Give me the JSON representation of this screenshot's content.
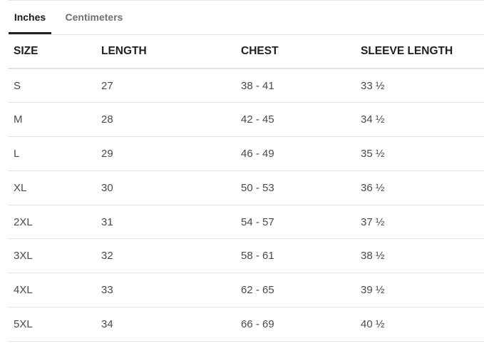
{
  "tabs": {
    "inches_label": "Inches",
    "centimeters_label": "Centimeters",
    "active": "Inches"
  },
  "table": {
    "headers": [
      "SIZE",
      "LENGTH",
      "CHEST",
      "SLEEVE LENGTH"
    ],
    "rows": [
      [
        "S",
        "27",
        "38 - 41",
        "33 ½"
      ],
      [
        "M",
        "28",
        "42 - 45",
        "34 ½"
      ],
      [
        "L",
        "29",
        "46 - 49",
        "35 ½"
      ],
      [
        "XL",
        "30",
        "50 - 53",
        "36 ½"
      ],
      [
        "2XL",
        "31",
        "54 - 57",
        "37 ½"
      ],
      [
        "3XL",
        "32",
        "58 - 61",
        "38 ½"
      ],
      [
        "4XL",
        "33",
        "62 - 65",
        "39 ½"
      ],
      [
        "5XL",
        "34",
        "66 - 69",
        "40 ½"
      ]
    ]
  },
  "colors": {
    "active_tab_underline": "#222222",
    "inactive_tab_text": "#707070",
    "row_divider": "#e3e3e3"
  }
}
